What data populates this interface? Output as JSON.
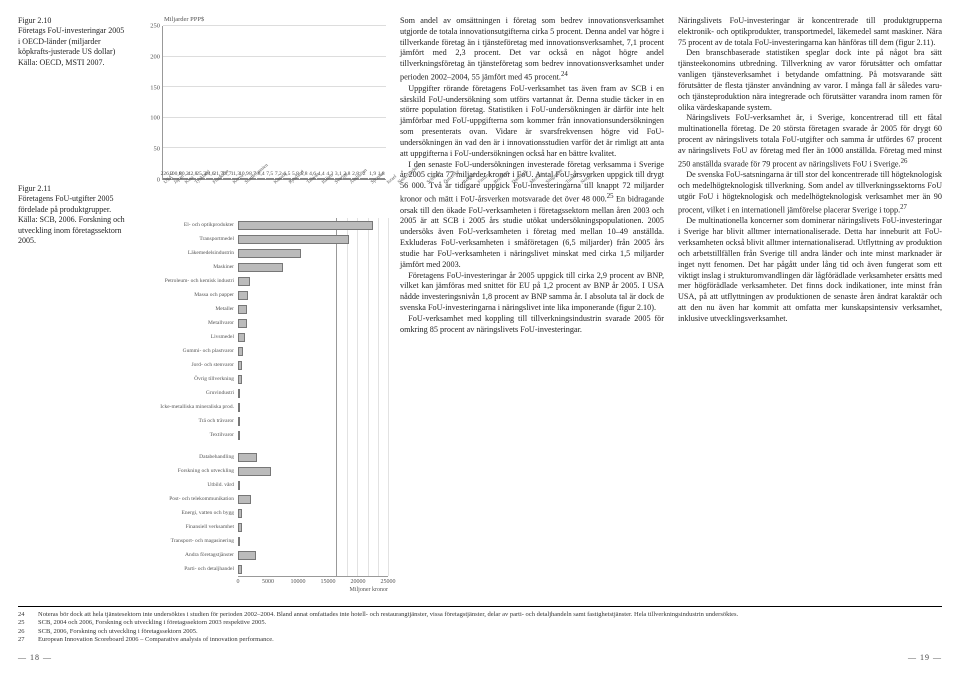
{
  "figure210": {
    "number": "Figur 2.10",
    "caption": "Företags FoU-investeringar 2005 i OECD-länder (miljarder köpkrafts-justerade US dollar) Källa: OECD, MSTI 2007."
  },
  "figure211": {
    "number": "Figur 2.11",
    "caption": "Företagens FoU-utgifter 2005 fördelade på produktgrupper. Källa: SCB, 2006. Forskning och utveckling inom företagssektorn 2005."
  },
  "bar_chart": {
    "y_title": "Miljarder PPP$",
    "ylim_max": 250,
    "ytick_step": 50,
    "bar_color": "#cccccc",
    "border_color": "#888888",
    "categories": [
      "USA",
      "Japan",
      "Kina",
      "Tyskland",
      "Frankrike",
      "Korea",
      "Storbritannien",
      "Kanada",
      "Ryssland",
      "Taiwan",
      "Italien",
      "Sverige",
      "Australien",
      "Spanien",
      "Israel",
      "Nederländerna",
      "Schweiz",
      "Österrike",
      "Belgien",
      "Finland",
      "Brasilien",
      "Danmark",
      "Mexiko",
      "Singapore",
      "Turkiet",
      "Norge"
    ],
    "values": [
      226.2,
      100.8,
      80.2,
      42.8,
      25.3,
      24.6,
      21.7,
      11.7,
      11.3,
      10.9,
      8.7,
      8.4,
      7.5,
      7.2,
      6.5,
      5.8,
      5.8,
      4.6,
      4.4,
      4.3,
      3.1,
      2.8,
      2.8,
      2.0,
      1.9,
      1.8
    ]
  },
  "hbar_chart": {
    "xmax": 25000,
    "xtick_step": 5000,
    "axis_title": "Miljoner kronor",
    "bar_color": "#bbbbbb",
    "border_color": "#777777",
    "rows": [
      {
        "label": "El- och optikprodukter",
        "v": 22500
      },
      {
        "label": "Transportmedel",
        "v": 18500
      },
      {
        "label": "Läkemedelsindustrin",
        "v": 10500
      },
      {
        "label": "Maskiner",
        "v": 7500
      },
      {
        "label": "Petroleum- och kemisk industri",
        "v": 2000
      },
      {
        "label": "Massa och papper",
        "v": 1600
      },
      {
        "label": "Metaller",
        "v": 1500
      },
      {
        "label": "Metallvaror",
        "v": 1500
      },
      {
        "label": "Livsmedel",
        "v": 1100
      },
      {
        "label": "Gummi- och plastvaror",
        "v": 900
      },
      {
        "label": "Jord- och stenvaror",
        "v": 700
      },
      {
        "label": "Övrig tillverkning",
        "v": 700
      },
      {
        "label": "Gruvindustri",
        "v": 400
      },
      {
        "label": "Icke-metalliska mineraliska prod.",
        "v": 350
      },
      {
        "label": "Trä och trävaror",
        "v": 300
      },
      {
        "label": "Textilvaror",
        "v": 250
      },
      {
        "label": "",
        "v": 0
      },
      {
        "label": "Databehandling",
        "v": 3200
      },
      {
        "label": "Forskning och utveckling",
        "v": 5500
      },
      {
        "label": "Utbild. vård",
        "v": 100
      },
      {
        "label": "Post- och telekommunikation",
        "v": 2200
      },
      {
        "label": "Energi, vatten och bygg",
        "v": 700
      },
      {
        "label": "Finansiell verksamhet",
        "v": 600
      },
      {
        "label": "Transport- och magasinering",
        "v": 250
      },
      {
        "label": "Andra företagstjänster",
        "v": 3000
      },
      {
        "label": "Parti- och detaljhandel",
        "v": 600
      }
    ]
  },
  "body": {
    "c1p1": "Som andel av omsättningen i företag som bedrev innovationsverksamhet utgjorde de totala innovationsutgifterna cirka 5 procent. Denna andel var högre i tillverkande företag än i tjänsteföretag med innovationsverksamhet, 7,1 procent jämfört med 2,3 procent. Det var också en något högre andel tillverkningsföretag än tjänsteföretag som bedrev innovationsverksamhet under perioden 2002–2004, 55 jämfört med 45 procent.",
    "c1p1_sup": "24",
    "c1p2": "Uppgifter rörande företagens FoU-verksamhet tas även fram av SCB i en särskild FoU-undersökning som utförs vartannat år. Denna studie täcker in en större population företag. Statistiken i FoU-undersökningen är därför inte helt jämförbar med FoU-uppgifterna som kommer från innovationsundersökningen som presenterats ovan. Vidare är svarsfrekvensen högre vid FoU-undersökningen än vad den är i innovationsstudien varför det är rimligt att anta att uppgifterna i FoU-undersökningen också har en bättre kvalitet.",
    "c1p3": "I den senaste FoU-undersökningen investerade företag verksamma i Sverige år 2005 cirka 77 miljarder kronor i FoU. Antal FoU-årsverken uppgick till drygt 56 000. Två år tidigare uppgick FoU-investeringarna till knappt 72 miljarder kronor och mätt i FoU-årsverken motsvarade det över 48 000.",
    "c1p3_sup": "25",
    "c1p3b": " En bidragande orsak till den ökade FoU-verksamheten i företagssektorn mellan åren 2003 och 2005 är att SCB i 2005 års studie utökat undersökningspopulationen. 2005 undersöks även FoU-verksamheten i företag med mellan 10–49 anställda. Exkluderas FoU-verksamheten i småföretagen (6,5 miljarder) från 2005 års studie har FoU-verksamheten i näringslivet minskat med cirka 1,5 miljarder jämfört med 2003.",
    "c1p4": "Företagens FoU-investeringar år 2005 uppgick till cirka 2,9 procent av BNP, vilket kan jämföras med snittet för EU på 1,2 procent av BNP år 2005. I USA nådde investeringsnivån 1,8 procent av BNP samma år. I absoluta tal är dock de svenska FoU-investeringarna i näringslivet inte lika imponerande (figur 2.10).",
    "c1p5": "FoU-verksamhet med koppling till tillverkningsindustrin svarade 2005 för omkring 85 procent av näringslivets FoU-investeringar.",
    "c2p1": "Näringslivets FoU-investeringar är koncentrerade till produktgrupperna elektronik- och optikprodukter, transportmedel, läkemedel samt maskiner. Nära 75 procent av de totala FoU-investeringarna kan hänföras till dem (figur 2.11).",
    "c2p2": "Den branschbaserade statistiken speglar dock inte på något bra sätt tjänsteekonomins utbredning. Tillverkning av varor förutsätter och omfattar vanligen tjänsteverksamhet i betydande omfattning. På motsvarande sätt förutsätter de flesta tjänster användning av varor. I många fall är således varu- och tjänsteproduktion nära integrerade och förutsätter varandra inom ramen för olika värdeskapande system.",
    "c2p3": "Näringslivets FoU-verksamhet är, i Sverige, koncentrerad till ett fåtal multinationella företag. De 20 största företagen svarade år 2005 för drygt 60 procent av näringslivets totala FoU-utgifter och samma år utfördes 67 procent av näringslivets FoU av företag med fler än 1000 anställda. Företag med minst 250 anställda svarade för 79 procent av näringslivets FoU i Sverige.",
    "c2p3_sup": "26",
    "c2p4": "De svenska FoU-satsningarna är till stor del koncentrerade till högteknologisk och medelhögteknologisk tillverkning. Som andel av tillverkningssektorns FoU utgör FoU i högteknologisk och medelhögteknologisk verksamhet mer än 90 procent, vilket i en internationell jämförelse placerar Sverige i topp.",
    "c2p4_sup": "27",
    "c2p5": "De multinationella koncerner som dominerar näringslivets FoU-investeringar i Sverige har blivit alltmer internationaliserade. Detta har inneburit att FoU-verksamheten också blivit alltmer internationaliserad. Utflyttning av produktion och arbetstillfällen från Sverige till andra länder och inte minst marknader är inget nytt fenomen. Det har pågått under lång tid och även fungerat som ett viktigt inslag i strukturomvandlingen där lågförädlade verksamheter ersätts med mer högförädlade verksamheter. Det finns dock indikationer, inte minst från USA, på att utflyttningen av produktionen de senaste åren ändrat karaktär och att den nu även har kommit att omfatta mer kunskapsintensiv verksamhet, inklusive utvecklingsverksamhet."
  },
  "footnotes": [
    {
      "n": "24",
      "t": "Noteras bör dock att hela tjänstesektorn inte undersöktes i studien för perioden 2002–2004. Bland annat omfattades inte hotell- och restaurangtjänster, vissa företagstjänster, delar av parti- och detaljhandeln samt fastighetstjänster. Hela tillverkningsindustrin undersöktes."
    },
    {
      "n": "25",
      "t": "SCB, 2004 och 2006, Forskning och utveckling i företagssektorn 2003 respektive 2005."
    },
    {
      "n": "26",
      "t": "SCB, 2006, Forskning och utveckling i företagssektorn 2005."
    },
    {
      "n": "27",
      "t": "European Innovation Scoreboard 2006 – Comparative analysis of innovation performance."
    }
  ],
  "pagenums": {
    "left": "— 18 —",
    "right": "— 19 —"
  }
}
